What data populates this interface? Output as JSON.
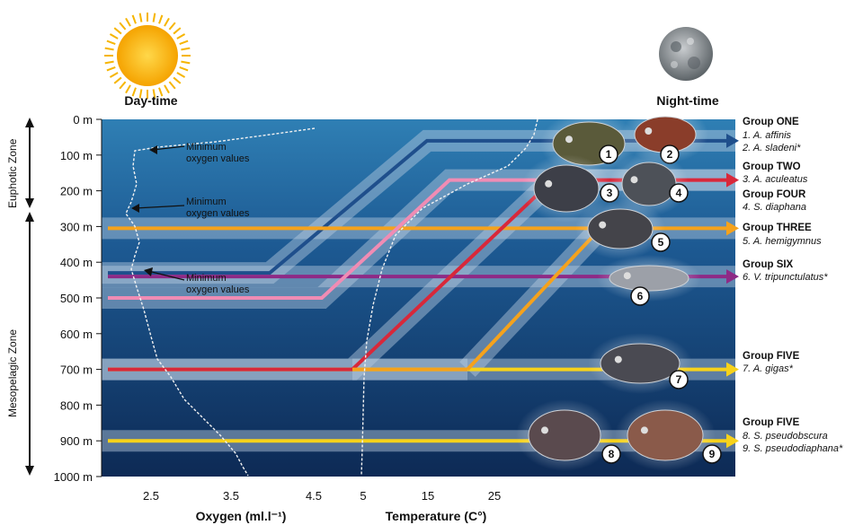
{
  "header": {
    "day_label": "Day-time",
    "night_label": "Night-time"
  },
  "zones": [
    "Euphotic Zone",
    "Mesopelagic Zone"
  ],
  "depth_ticks": [
    "0 m",
    "100 m",
    "200 m",
    "300 m",
    "400 m",
    "500 m",
    "600 m",
    "700 m",
    "800 m",
    "900 m",
    "1000 m"
  ],
  "oxygen_axis": {
    "label": "Oxygen (ml.l⁻¹)",
    "ticks": [
      "2.5",
      "3.5",
      "4.5"
    ]
  },
  "temperature_axis": {
    "label": "Temperature (C°)",
    "ticks": [
      "5",
      "15",
      "25"
    ]
  },
  "annotations": [
    {
      "line1": "Minimum",
      "line2": "oxygen values"
    },
    {
      "line1": "Minimum",
      "line2": "oxygen values"
    },
    {
      "line1": "Minimum",
      "line2": "oxygen values"
    }
  ],
  "groups": [
    {
      "title": "Group ONE",
      "species": [
        "1. A. affinis",
        "2. A. sladeni*"
      ]
    },
    {
      "title": "Group TWO",
      "species": [
        "3. A. aculeatus"
      ]
    },
    {
      "title": "Group FOUR",
      "species": [
        "4. S. diaphana"
      ]
    },
    {
      "title": "Group THREE",
      "species": [
        "5. A. hemigymnus"
      ]
    },
    {
      "title": "Group SIX",
      "species": [
        "6. V. tripunctulatus*"
      ]
    },
    {
      "title": "Group FIVE",
      "species": [
        "7. A. gigas*"
      ]
    },
    {
      "title": "Group FIVE",
      "species": [
        "8. S. pseudobscura",
        "9. S. pseudodiaphana*"
      ]
    }
  ],
  "fish_numbers": [
    "1",
    "2",
    "3",
    "4",
    "5",
    "6",
    "7",
    "8",
    "9"
  ],
  "migrations": [
    {
      "group": "Group ONE",
      "day_depth_m": 430,
      "night_depth_m": 60,
      "color": "#1f4f8c"
    },
    {
      "group": "Group TWO",
      "day_depth_m": 500,
      "night_depth_m": 170,
      "color": "#f08cb4"
    },
    {
      "group": "Group FOUR",
      "day_depth_m": 700,
      "night_depth_m": 170,
      "color": "#d8283a"
    },
    {
      "group": "Group THREE",
      "day_depth_m": 305,
      "night_depth_m": 305,
      "color": "#f5a21c"
    },
    {
      "group": "Group SIX",
      "day_depth_m": 440,
      "night_depth_m": 440,
      "color": "#8e2a86"
    },
    {
      "group": "Group FIVE",
      "day_depth_m": 700,
      "night_depth_m": 700,
      "color": "#f7d21a"
    },
    {
      "group": "Group FIVE",
      "day_depth_m": 900,
      "night_depth_m": 900,
      "color": "#f7d21a"
    }
  ],
  "colors": {
    "sea_top": "#2f7fb4",
    "sea_bottom": "#0d2a55",
    "band": "#b9cbe0",
    "sun": "#f6b500",
    "moon": "#8a8f94"
  }
}
